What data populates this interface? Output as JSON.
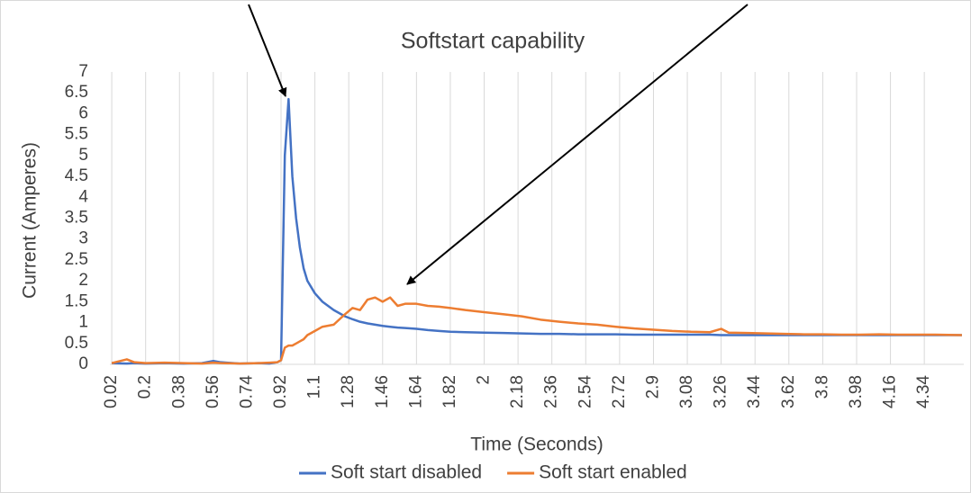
{
  "chart_data": {
    "type": "line",
    "title": "Softstart capability",
    "x_label": "Time (Seconds)",
    "y_label": "Current (Amperes)",
    "x": [
      0.02,
      0.1,
      0.14,
      0.2,
      0.3,
      0.4,
      0.5,
      0.56,
      0.6,
      0.7,
      0.8,
      0.86,
      0.9,
      0.92,
      0.94,
      0.96,
      0.98,
      1.0,
      1.02,
      1.04,
      1.06,
      1.1,
      1.14,
      1.2,
      1.26,
      1.3,
      1.34,
      1.38,
      1.42,
      1.46,
      1.5,
      1.54,
      1.58,
      1.64,
      1.7,
      1.76,
      1.82,
      1.9,
      2.0,
      2.1,
      2.2,
      2.3,
      2.4,
      2.5,
      2.6,
      2.7,
      2.8,
      2.9,
      3.0,
      3.1,
      3.2,
      3.26,
      3.3,
      3.4,
      3.5,
      3.6,
      3.7,
      3.8,
      3.9,
      4.0,
      4.1,
      4.2,
      4.3,
      4.4,
      4.54
    ],
    "series": [
      {
        "name": "Soft start disabled",
        "color": "#4472c4",
        "values": [
          0.03,
          0.02,
          0.03,
          0.02,
          0.03,
          0.02,
          0.03,
          0.08,
          0.05,
          0.02,
          0.03,
          0.02,
          0.05,
          0.1,
          5.0,
          6.35,
          4.5,
          3.5,
          2.8,
          2.3,
          2.0,
          1.7,
          1.5,
          1.3,
          1.15,
          1.08,
          1.02,
          0.98,
          0.95,
          0.92,
          0.9,
          0.88,
          0.87,
          0.85,
          0.82,
          0.8,
          0.78,
          0.77,
          0.76,
          0.75,
          0.74,
          0.73,
          0.73,
          0.72,
          0.72,
          0.72,
          0.71,
          0.71,
          0.71,
          0.71,
          0.71,
          0.7,
          0.7,
          0.7,
          0.7,
          0.7,
          0.7,
          0.7,
          0.7,
          0.7,
          0.7,
          0.7,
          0.7,
          0.7,
          0.7
        ]
      },
      {
        "name": "Soft start enabled",
        "color": "#ed7d31",
        "values": [
          0.03,
          0.12,
          0.05,
          0.03,
          0.04,
          0.03,
          0.02,
          0.04,
          0.03,
          0.02,
          0.03,
          0.04,
          0.05,
          0.1,
          0.4,
          0.45,
          0.45,
          0.5,
          0.55,
          0.6,
          0.7,
          0.8,
          0.9,
          0.95,
          1.2,
          1.35,
          1.3,
          1.55,
          1.6,
          1.5,
          1.6,
          1.4,
          1.45,
          1.45,
          1.4,
          1.38,
          1.35,
          1.3,
          1.25,
          1.2,
          1.15,
          1.07,
          1.02,
          0.98,
          0.95,
          0.9,
          0.86,
          0.83,
          0.8,
          0.78,
          0.77,
          0.85,
          0.76,
          0.75,
          0.74,
          0.73,
          0.72,
          0.72,
          0.71,
          0.71,
          0.72,
          0.71,
          0.71,
          0.71,
          0.7
        ]
      }
    ],
    "xlim": [
      0.01,
      4.55
    ],
    "xticks": [
      0.02,
      0.2,
      0.38,
      0.56,
      0.74,
      0.92,
      1.1,
      1.28,
      1.46,
      1.64,
      1.82,
      2,
      2.18,
      2.36,
      2.54,
      2.72,
      2.9,
      3.08,
      3.26,
      3.44,
      3.62,
      3.8,
      3.98,
      4.16,
      4.34
    ],
    "ylim": [
      0,
      7
    ],
    "yticks": [
      0,
      0.5,
      1,
      1.5,
      2,
      2.5,
      3,
      3.5,
      4,
      4.5,
      5,
      5.5,
      6,
      6.5,
      7
    ],
    "grid": "x",
    "legend": "bottom"
  }
}
